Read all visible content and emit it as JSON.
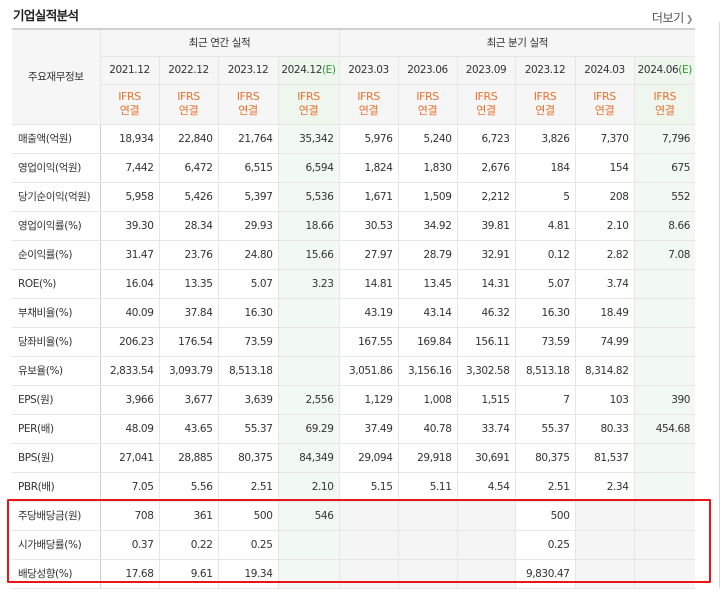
{
  "title": "기업실적분석",
  "more": "더보기",
  "corner_label": "주요재무정보",
  "groups": {
    "annual": "최근 연간 실적",
    "quarter": "최근 분기 실적"
  },
  "periods": [
    {
      "label": "2021.12",
      "est": false,
      "mark": ""
    },
    {
      "label": "2022.12",
      "est": false,
      "mark": ""
    },
    {
      "label": "2023.12",
      "est": false,
      "mark": ""
    },
    {
      "label": "2024.12",
      "est": true,
      "mark": "(E)"
    },
    {
      "label": "2023.03",
      "est": false,
      "mark": ""
    },
    {
      "label": "2023.06",
      "est": false,
      "mark": ""
    },
    {
      "label": "2023.09",
      "est": false,
      "mark": ""
    },
    {
      "label": "2023.12",
      "est": false,
      "mark": ""
    },
    {
      "label": "2024.03",
      "est": false,
      "mark": ""
    },
    {
      "label": "2024.06",
      "est": true,
      "mark": "(E)"
    }
  ],
  "acct_line1": "IFRS",
  "acct_line2": "연결",
  "rows": [
    {
      "label": "매출액(억원)",
      "values": [
        "18,934",
        "22,840",
        "21,764",
        "35,342",
        "5,976",
        "5,240",
        "6,723",
        "3,826",
        "7,370",
        "7,796"
      ]
    },
    {
      "label": "영업이익(억원)",
      "values": [
        "7,442",
        "6,472",
        "6,515",
        "6,594",
        "1,824",
        "1,830",
        "2,676",
        "184",
        "154",
        "675"
      ]
    },
    {
      "label": "당기순이익(억원)",
      "values": [
        "5,958",
        "5,426",
        "5,397",
        "5,536",
        "1,671",
        "1,509",
        "2,212",
        "5",
        "208",
        "552"
      ]
    },
    {
      "label": "영업이익률(%)",
      "values": [
        "39.30",
        "28.34",
        "29.93",
        "18.66",
        "30.53",
        "34.92",
        "39.81",
        "4.81",
        "2.10",
        "8.66"
      ]
    },
    {
      "label": "순이익률(%)",
      "values": [
        "31.47",
        "23.76",
        "24.80",
        "15.66",
        "27.97",
        "28.79",
        "32.91",
        "0.12",
        "2.82",
        "7.08"
      ]
    },
    {
      "label": "ROE(%)",
      "values": [
        "16.04",
        "13.35",
        "5.07",
        "3.23",
        "14.81",
        "13.45",
        "14.31",
        "5.07",
        "3.74",
        ""
      ]
    },
    {
      "label": "부채비율(%)",
      "values": [
        "40.09",
        "37.84",
        "16.30",
        "",
        "43.19",
        "43.14",
        "46.32",
        "16.30",
        "18.49",
        ""
      ]
    },
    {
      "label": "당좌비율(%)",
      "values": [
        "206.23",
        "176.54",
        "73.59",
        "",
        "167.55",
        "169.84",
        "156.11",
        "73.59",
        "74.99",
        ""
      ]
    },
    {
      "label": "유보율(%)",
      "values": [
        "2,833.54",
        "3,093.79",
        "8,513.18",
        "",
        "3,051.86",
        "3,156.16",
        "3,302.58",
        "8,513.18",
        "8,314.82",
        ""
      ]
    },
    {
      "label": "EPS(원)",
      "values": [
        "3,966",
        "3,677",
        "3,639",
        "2,556",
        "1,129",
        "1,008",
        "1,515",
        "7",
        "103",
        "390"
      ]
    },
    {
      "label": "PER(배)",
      "values": [
        "48.09",
        "43.65",
        "55.37",
        "69.29",
        "37.49",
        "40.78",
        "33.74",
        "55.37",
        "80.33",
        "454.68"
      ]
    },
    {
      "label": "BPS(원)",
      "values": [
        "27,041",
        "28,885",
        "80,375",
        "84,349",
        "29,094",
        "29,918",
        "30,691",
        "80,375",
        "81,537",
        ""
      ]
    },
    {
      "label": "PBR(배)",
      "values": [
        "7.05",
        "5.56",
        "2.51",
        "2.10",
        "5.15",
        "5.11",
        "4.54",
        "2.51",
        "2.34",
        ""
      ]
    },
    {
      "label": "주당배당금(원)",
      "values": [
        "708",
        "361",
        "500",
        "546",
        "",
        "",
        "",
        "500",
        "",
        ""
      ]
    },
    {
      "label": "시가배당률(%)",
      "values": [
        "0.37",
        "0.22",
        "0.25",
        "",
        "",
        "",
        "",
        "0.25",
        "",
        ""
      ]
    },
    {
      "label": "배당성향(%)",
      "values": [
        "17.68",
        "9.61",
        "19.34",
        "",
        "",
        "",
        "",
        "9,830.47",
        "",
        ""
      ]
    }
  ],
  "colors": {
    "accent": "#e8722e",
    "estimate": "#2d9a2d",
    "highlight": "#e8161b"
  }
}
